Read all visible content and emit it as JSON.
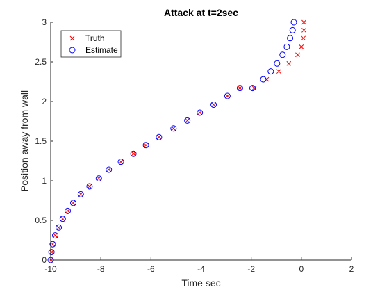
{
  "chart_data": {
    "type": "scatter",
    "title": "Attack at t=2sec",
    "xlabel": "Time sec",
    "ylabel": "Position away from wall",
    "xlim": [
      -10,
      2
    ],
    "ylim": [
      0,
      3
    ],
    "xticks": [
      -10,
      -8,
      -6,
      -4,
      -2,
      0,
      2
    ],
    "yticks": [
      0,
      0.5,
      1,
      1.5,
      2,
      2.5,
      3
    ],
    "xtick_labels": [
      "-10",
      "-8",
      "-6",
      "-4",
      "-2",
      "0",
      "2"
    ],
    "ytick_labels": [
      "0",
      "0.5",
      "1",
      "1.5",
      "2",
      "2.5",
      "3"
    ],
    "grid": false,
    "legend_position": "top-left",
    "series": [
      {
        "name": "Truth",
        "marker": "x",
        "color": "#ff0000",
        "points": [
          [
            -10.0,
            0.0
          ],
          [
            -9.97,
            0.1
          ],
          [
            -9.92,
            0.2
          ],
          [
            -9.82,
            0.31
          ],
          [
            -9.68,
            0.41
          ],
          [
            -9.52,
            0.52
          ],
          [
            -9.32,
            0.62
          ],
          [
            -9.1,
            0.72
          ],
          [
            -8.8,
            0.83
          ],
          [
            -8.45,
            0.93
          ],
          [
            -8.08,
            1.03
          ],
          [
            -7.68,
            1.14
          ],
          [
            -7.2,
            1.24
          ],
          [
            -6.7,
            1.34
          ],
          [
            -6.2,
            1.45
          ],
          [
            -5.68,
            1.55
          ],
          [
            -5.1,
            1.66
          ],
          [
            -4.55,
            1.76
          ],
          [
            -4.05,
            1.86
          ],
          [
            -3.5,
            1.96
          ],
          [
            -2.95,
            2.07
          ],
          [
            -2.45,
            2.17
          ],
          [
            -1.88,
            2.17
          ],
          [
            -1.38,
            2.28
          ],
          [
            -0.9,
            2.38
          ],
          [
            -0.5,
            2.48
          ],
          [
            -0.15,
            2.59
          ],
          [
            0.0,
            2.69
          ],
          [
            0.08,
            2.8
          ],
          [
            0.1,
            2.9
          ],
          [
            0.1,
            3.0
          ]
        ]
      },
      {
        "name": "Estimate",
        "marker": "o",
        "color": "#0000ff",
        "points": [
          [
            -10.0,
            0.0
          ],
          [
            -9.97,
            0.1
          ],
          [
            -9.92,
            0.2
          ],
          [
            -9.82,
            0.31
          ],
          [
            -9.68,
            0.41
          ],
          [
            -9.52,
            0.52
          ],
          [
            -9.32,
            0.62
          ],
          [
            -9.1,
            0.72
          ],
          [
            -8.8,
            0.83
          ],
          [
            -8.45,
            0.93
          ],
          [
            -8.08,
            1.03
          ],
          [
            -7.68,
            1.14
          ],
          [
            -7.2,
            1.24
          ],
          [
            -6.7,
            1.34
          ],
          [
            -6.2,
            1.45
          ],
          [
            -5.68,
            1.55
          ],
          [
            -5.1,
            1.66
          ],
          [
            -4.55,
            1.76
          ],
          [
            -4.05,
            1.86
          ],
          [
            -3.5,
            1.96
          ],
          [
            -2.95,
            2.07
          ],
          [
            -2.45,
            2.17
          ],
          [
            -1.95,
            2.17
          ],
          [
            -1.52,
            2.28
          ],
          [
            -1.22,
            2.38
          ],
          [
            -0.97,
            2.48
          ],
          [
            -0.75,
            2.59
          ],
          [
            -0.58,
            2.69
          ],
          [
            -0.45,
            2.8
          ],
          [
            -0.35,
            2.9
          ],
          [
            -0.3,
            3.0
          ]
        ]
      }
    ]
  }
}
